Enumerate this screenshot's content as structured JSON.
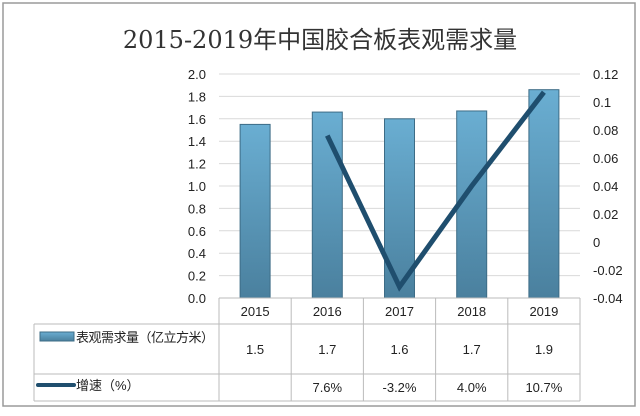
{
  "chart_data": {
    "type": "bar+line",
    "title": "2015-2019年中国胶合板表观需求量",
    "categories": [
      "2015",
      "2016",
      "2017",
      "2018",
      "2019"
    ],
    "y_left": {
      "min": 0,
      "max": 2.0,
      "ticks": [
        "0.0",
        "0.2",
        "0.4",
        "0.6",
        "0.8",
        "1.0",
        "1.2",
        "1.4",
        "1.6",
        "1.8",
        "2.0"
      ]
    },
    "y_right": {
      "min": -0.04,
      "max": 0.12,
      "ticks": [
        "-0.04",
        "-0.02",
        "0",
        "0.02",
        "0.04",
        "0.06",
        "0.08",
        "0.1",
        "0.12"
      ]
    },
    "grid": true,
    "series": [
      {
        "name": "表观需求量（亿立方米）",
        "type": "bar",
        "axis": "left",
        "color": "#5b9bbd",
        "values": [
          1.55,
          1.66,
          1.6,
          1.67,
          1.86
        ],
        "table_labels": [
          "1.5",
          "1.7",
          "1.6",
          "1.7",
          "1.9"
        ]
      },
      {
        "name": "增速（%）",
        "type": "line",
        "axis": "right",
        "color": "#1f4e6e",
        "values": [
          null,
          0.076,
          -0.032,
          0.04,
          0.107
        ],
        "table_labels": [
          "",
          "7.6%",
          "-3.2%",
          "4.0%",
          "10.7%"
        ]
      }
    ],
    "legend": "data-table"
  }
}
